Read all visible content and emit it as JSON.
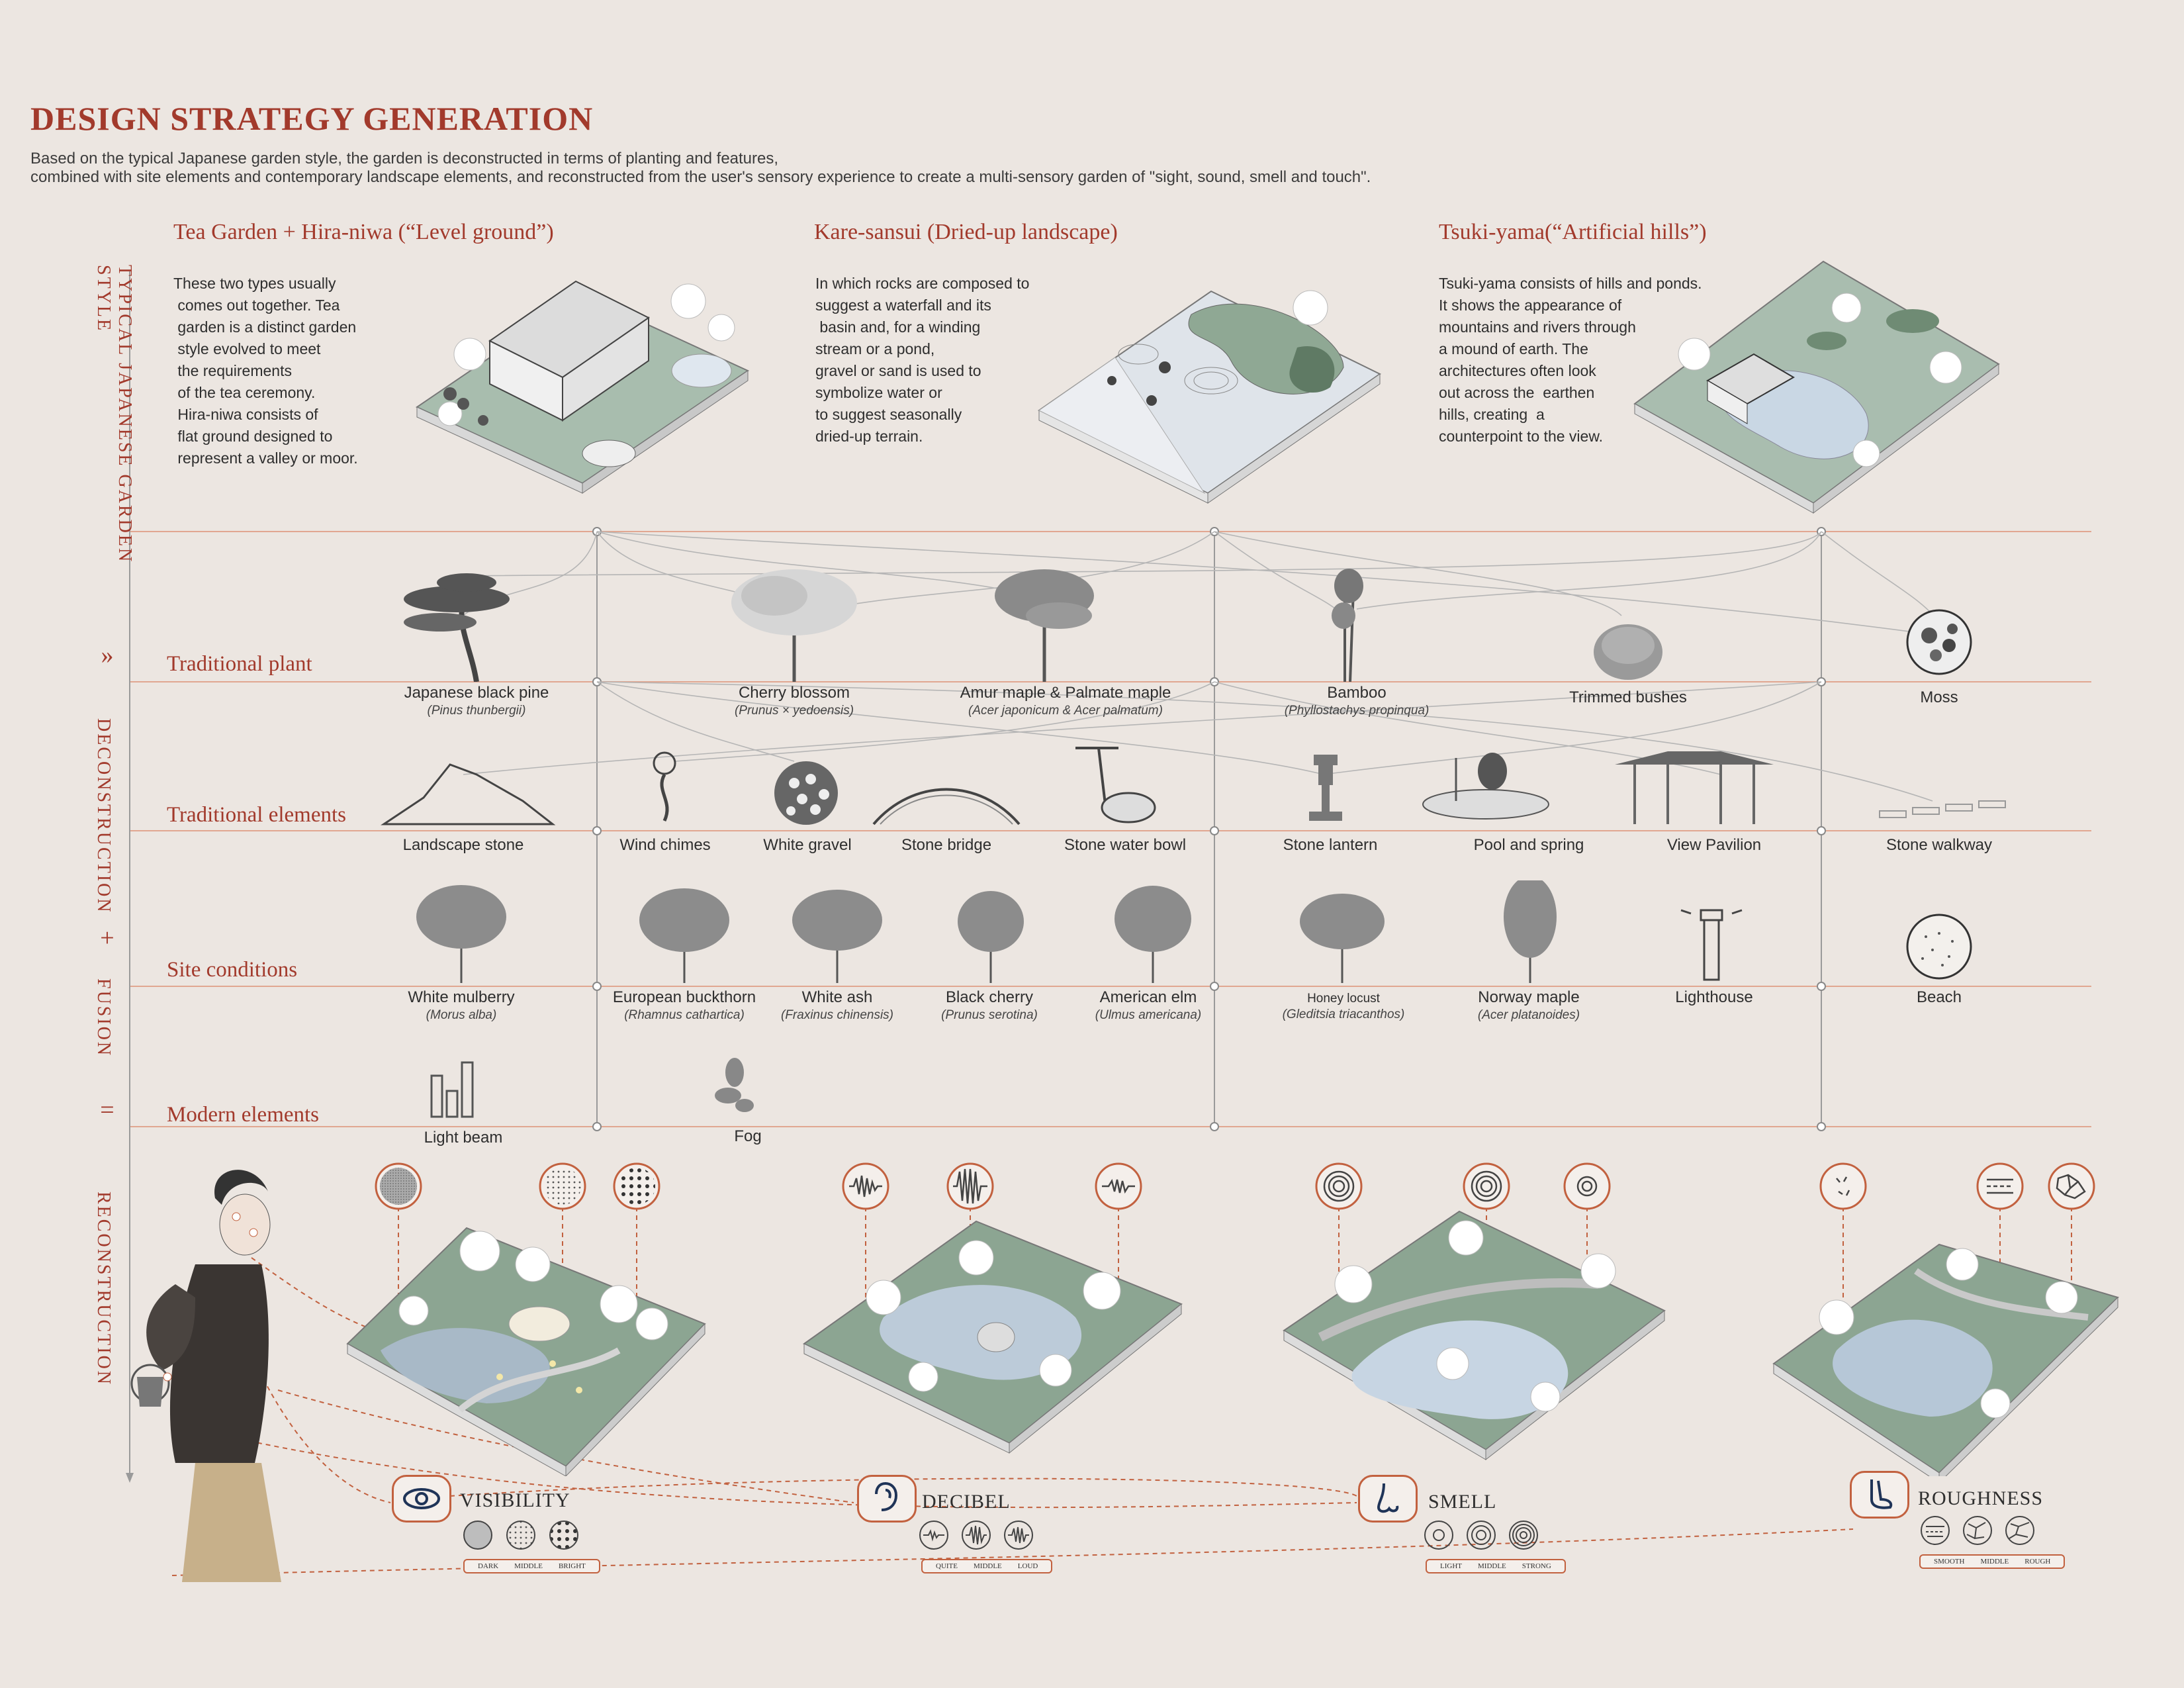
{
  "header": {
    "title": "DESIGN STRATEGY GENERATION",
    "intro_line1": "Based on the typical Japanese garden style, the garden is deconstructed in terms of planting and features,",
    "intro_line2": "combined with site elements and contemporary landscape elements, and reconstructed from the user's sensory experience to create a multi-sensory garden of \"sight, sound, smell and touch\"."
  },
  "side_labels": {
    "typical": "TYPICAL JAPANESE GARDEN STYLE",
    "deconstruction": "DECONSTRUCTION",
    "fusion": "FUSION",
    "reconstruction": "RECONSTRUCTION",
    "sym_arrows": "»",
    "sym_plus": "+",
    "sym_equals": "="
  },
  "styles": [
    {
      "title": "Tea Garden + Hira-niwa (“Level ground”)",
      "desc": "These two types usually\n comes out together. Tea\n garden is a distinct garden\n style evolved to meet\n the requirements\n of the tea ceremony.\n Hira-niwa consists of\n flat ground designed to\n represent a valley or moor."
    },
    {
      "title": "Kare-sansui (Dried-up landscape)",
      "desc": "In which rocks are composed to\nsuggest a waterfall and its\n basin and, for a winding\nstream or a pond,\ngravel or sand is used to\nsymbolize water or\nto suggest seasonally\ndried-up terrain."
    },
    {
      "title": "Tsuki-yama(“Artificial hills”)",
      "desc": "Tsuki-yama consists of hills and ponds.\nIt shows the appearance of\nmountains and rivers through\na mound of earth. The\narchitectures often look\nout across the  earthen\nhills, creating  a\ncounterpoint to the view."
    }
  ],
  "rows": {
    "traditional_plant": "Traditional plant",
    "traditional_elements": "Traditional elements",
    "site_conditions": "Site conditions",
    "modern_elements": "Modern elements"
  },
  "plants": [
    {
      "name": "Japanese black pine",
      "sci": "(Pinus thunbergii)"
    },
    {
      "name": "Cherry blossom",
      "sci": "(Prunus × yedoensis)"
    },
    {
      "name": "Amur maple & Palmate maple",
      "sci": "(Acer japonicum & Acer palmatum)"
    },
    {
      "name": "Bamboo",
      "sci": "(Phyllostachys propinqua)"
    },
    {
      "name": "Trimmed bushes",
      "sci": ""
    },
    {
      "name": "Moss",
      "sci": ""
    }
  ],
  "elements": [
    {
      "name": "Landscape stone"
    },
    {
      "name": "Wind chimes"
    },
    {
      "name": "White gravel"
    },
    {
      "name": "Stone bridge"
    },
    {
      "name": "Stone water bowl"
    },
    {
      "name": "Stone lantern"
    },
    {
      "name": "Pool and spring"
    },
    {
      "name": "View Pavilion"
    },
    {
      "name": "Stone walkway"
    }
  ],
  "site": [
    {
      "name": "White mulberry",
      "sci": "(Morus alba)"
    },
    {
      "name": "European buckthorn",
      "sci": "(Rhamnus cathartica)"
    },
    {
      "name": "White ash",
      "sci": "(Fraxinus chinensis)"
    },
    {
      "name": "Black cherry",
      "sci": "(Prunus serotina)"
    },
    {
      "name": "American elm",
      "sci": "(Ulmus americana)"
    },
    {
      "name": "Honey locust",
      "sci": "(Gleditsia triacanthos)"
    },
    {
      "name": "Norway maple",
      "sci": "(Acer platanoides)"
    },
    {
      "name": "Lighthouse",
      "sci": ""
    },
    {
      "name": "Beach",
      "sci": ""
    }
  ],
  "modern": [
    {
      "name": "Light beam"
    },
    {
      "name": "Fog"
    }
  ],
  "senses": [
    {
      "title": "VISIBILITY",
      "icon": "eye-icon",
      "levels": [
        "DARK",
        "MIDDLE",
        "BRIGHT"
      ]
    },
    {
      "title": "DECIBEL",
      "icon": "ear-icon",
      "levels": [
        "QUITE",
        "MIDDLE",
        "LOUD"
      ]
    },
    {
      "title": "SMELL",
      "icon": "nose-icon",
      "levels": [
        "LIGHT",
        "MIDDLE",
        "STRONG"
      ]
    },
    {
      "title": "ROUGHNESS",
      "icon": "foot-icon",
      "levels": [
        "SMOOTH",
        "MIDDLE",
        "ROUGH"
      ]
    }
  ],
  "colors": {
    "accent": "#a23a2c",
    "line": "#c2613f",
    "background": "#ece6e1",
    "garden_green": "#7f9c86",
    "water": "#b9c9d8"
  }
}
